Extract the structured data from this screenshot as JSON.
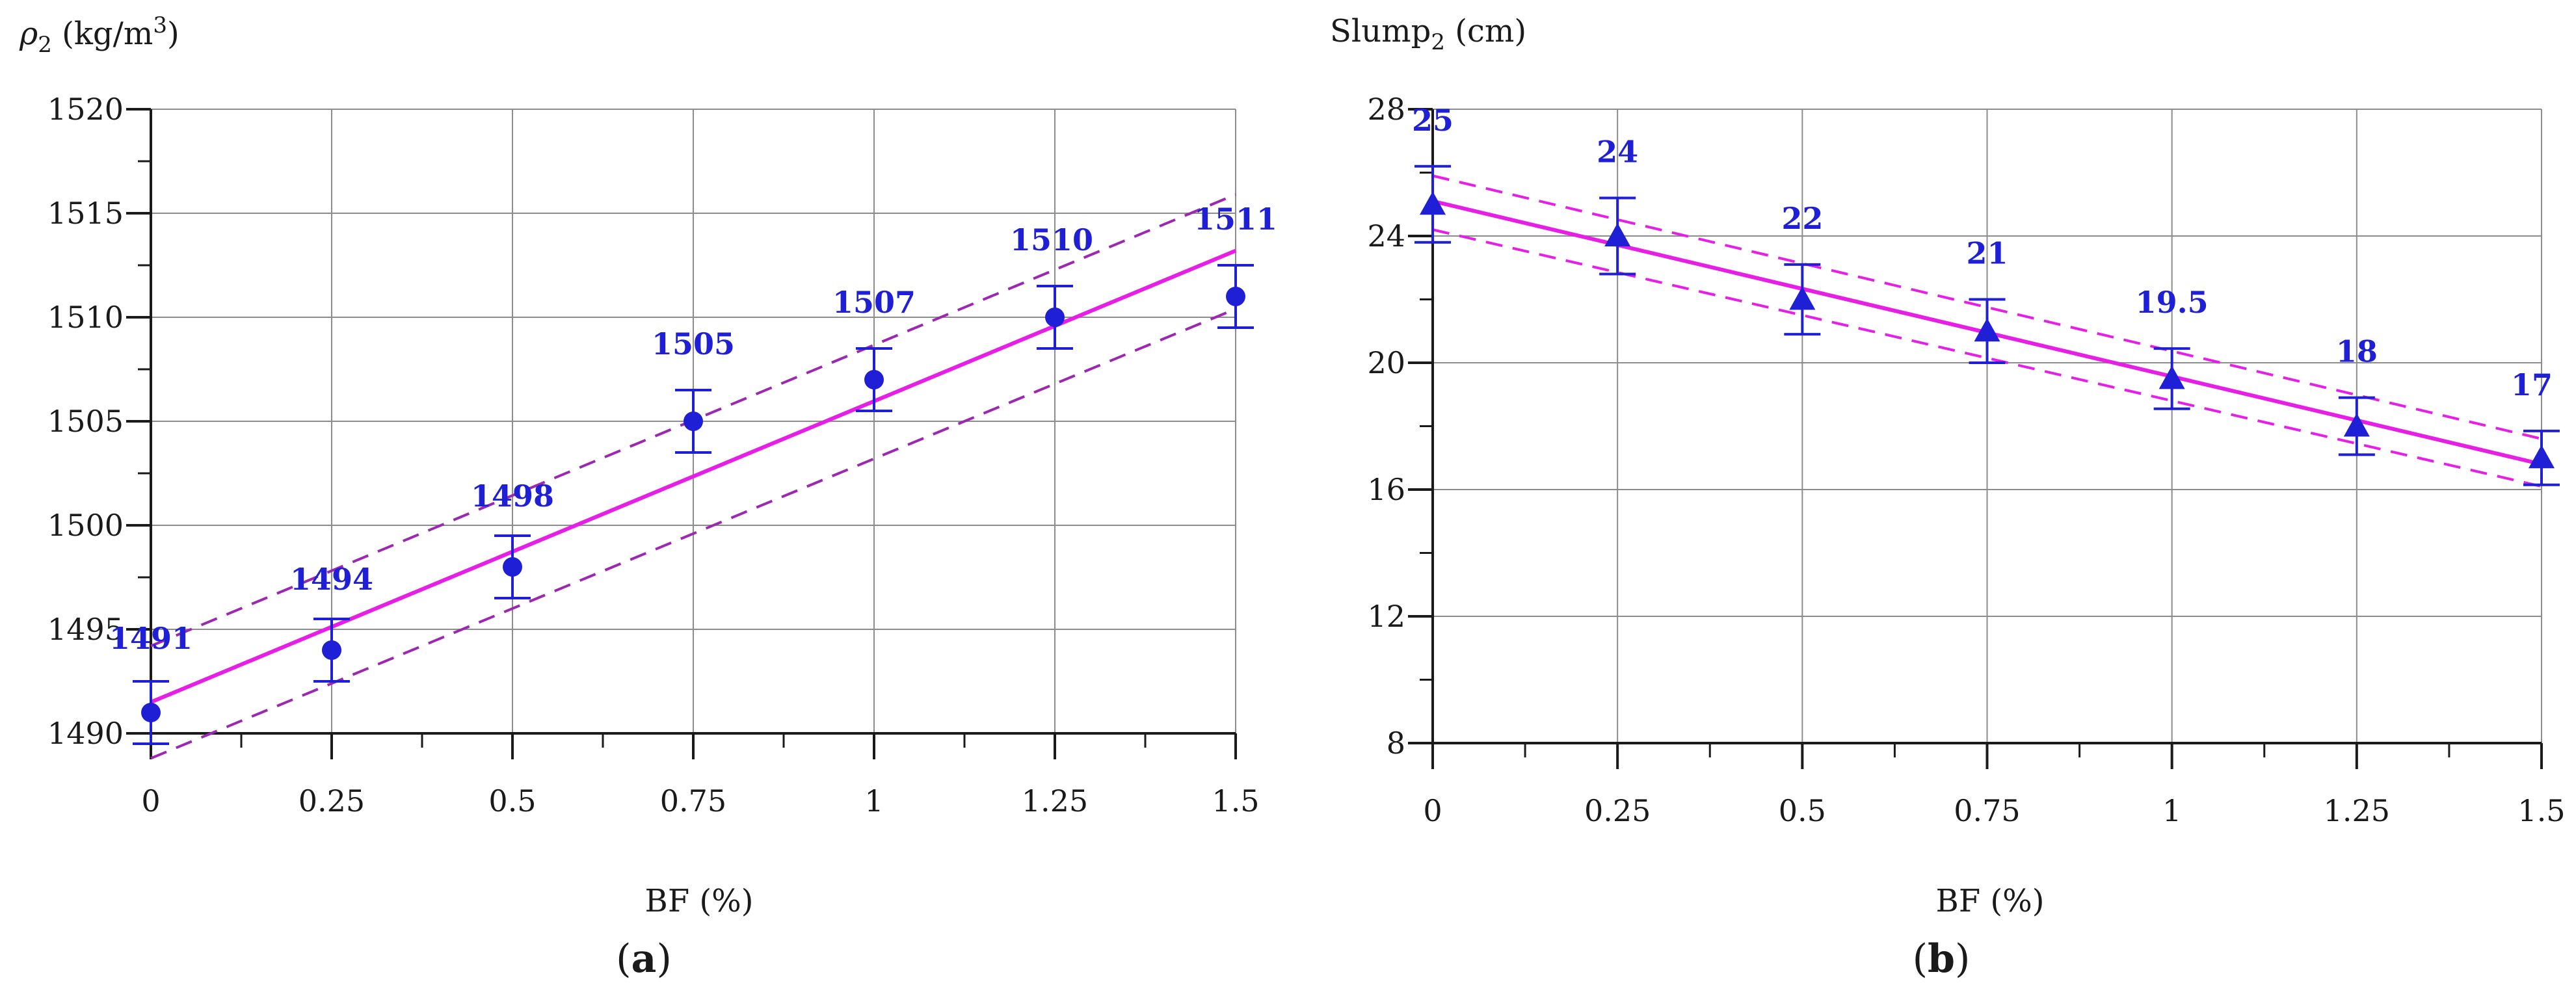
{
  "chart_data": [
    {
      "panel": "(a)",
      "panel_letter": "a",
      "type": "scatter",
      "title": "",
      "ylabel_symbol": "ρ",
      "ylabel_subscript": "2",
      "ylabel_unit": " (kg/m",
      "ylabel_unit_exp": "3",
      "ylabel_unit_close": ")",
      "xlabel": "BF (%)",
      "xlim": [
        0,
        1.5
      ],
      "ylim": [
        1490,
        1520
      ],
      "xticks": [
        0,
        0.25,
        0.5,
        0.75,
        1,
        1.25,
        1.5
      ],
      "xtick_labels": [
        "0",
        "0.25",
        "0.5",
        "0.75",
        "1",
        "1.25",
        "1.5"
      ],
      "yticks": [
        1490,
        1495,
        1500,
        1505,
        1510,
        1515,
        1520
      ],
      "ytick_labels": [
        "1490",
        "1495",
        "1500",
        "1505",
        "1510",
        "1515",
        "1520"
      ],
      "marker": "circle",
      "x": [
        0,
        0.25,
        0.5,
        0.75,
        1,
        1.25,
        1.5
      ],
      "y": [
        1491,
        1494,
        1498,
        1505,
        1507,
        1510,
        1511
      ],
      "error": [
        1.5,
        1.5,
        1.5,
        1.5,
        1.5,
        1.5,
        1.5
      ],
      "data_labels": [
        "1491",
        "1494",
        "1498",
        "1505",
        "1507",
        "1510",
        "1511"
      ],
      "fit_line": {
        "x": [
          0,
          1.5
        ],
        "y": [
          1491.5,
          1513.2
        ]
      },
      "confidence_band": {
        "upper": {
          "x": [
            0,
            1.5
          ],
          "y": [
            1494.2,
            1515.9
          ]
        },
        "lower": {
          "x": [
            0,
            1.5
          ],
          "y": [
            1488.8,
            1510.4
          ]
        }
      },
      "colors": {
        "points": "#1f1fd6",
        "fit": "#e61ee6",
        "band": "#9c27b0",
        "grid": "#8c8c8c",
        "axis": "#1a1a1a"
      }
    },
    {
      "panel": "(b)",
      "panel_letter": "b",
      "type": "scatter",
      "title": "",
      "ylabel_symbol": "Slump",
      "ylabel_subscript": "2",
      "ylabel_unit": " (cm)",
      "ylabel_unit_exp": "",
      "ylabel_unit_close": "",
      "xlabel": "BF (%)",
      "xlim": [
        0,
        1.5
      ],
      "ylim": [
        8,
        28
      ],
      "xticks": [
        0,
        0.25,
        0.5,
        0.75,
        1,
        1.25,
        1.5
      ],
      "xtick_labels": [
        "0",
        "0.25",
        "0.5",
        "0.75",
        "1",
        "1.25",
        "1.5"
      ],
      "yticks": [
        8,
        12,
        16,
        20,
        24,
        28
      ],
      "ytick_labels": [
        "8",
        "12",
        "16",
        "20",
        "24",
        "28"
      ],
      "marker": "triangle",
      "x": [
        0,
        0.25,
        0.5,
        0.75,
        1,
        1.25,
        1.5
      ],
      "y": [
        25,
        24,
        22,
        21,
        19.5,
        18,
        17
      ],
      "error": [
        1.2,
        1.2,
        1.1,
        1.0,
        0.95,
        0.9,
        0.85
      ],
      "data_labels": [
        "25",
        "24",
        "22",
        "21",
        "19.5",
        "18",
        "17"
      ],
      "fit_line": {
        "x": [
          0,
          1.5
        ],
        "y": [
          25.1,
          16.8
        ]
      },
      "confidence_band": {
        "upper": {
          "x": [
            0,
            1.5
          ],
          "y": [
            25.9,
            17.6
          ]
        },
        "lower": {
          "x": [
            0,
            1.5
          ],
          "y": [
            24.2,
            16.1
          ]
        }
      },
      "colors": {
        "points": "#1f1fd6",
        "fit": "#e61ee6",
        "band": "#e61ee6",
        "grid": "#8c8c8c",
        "axis": "#1a1a1a"
      }
    }
  ]
}
